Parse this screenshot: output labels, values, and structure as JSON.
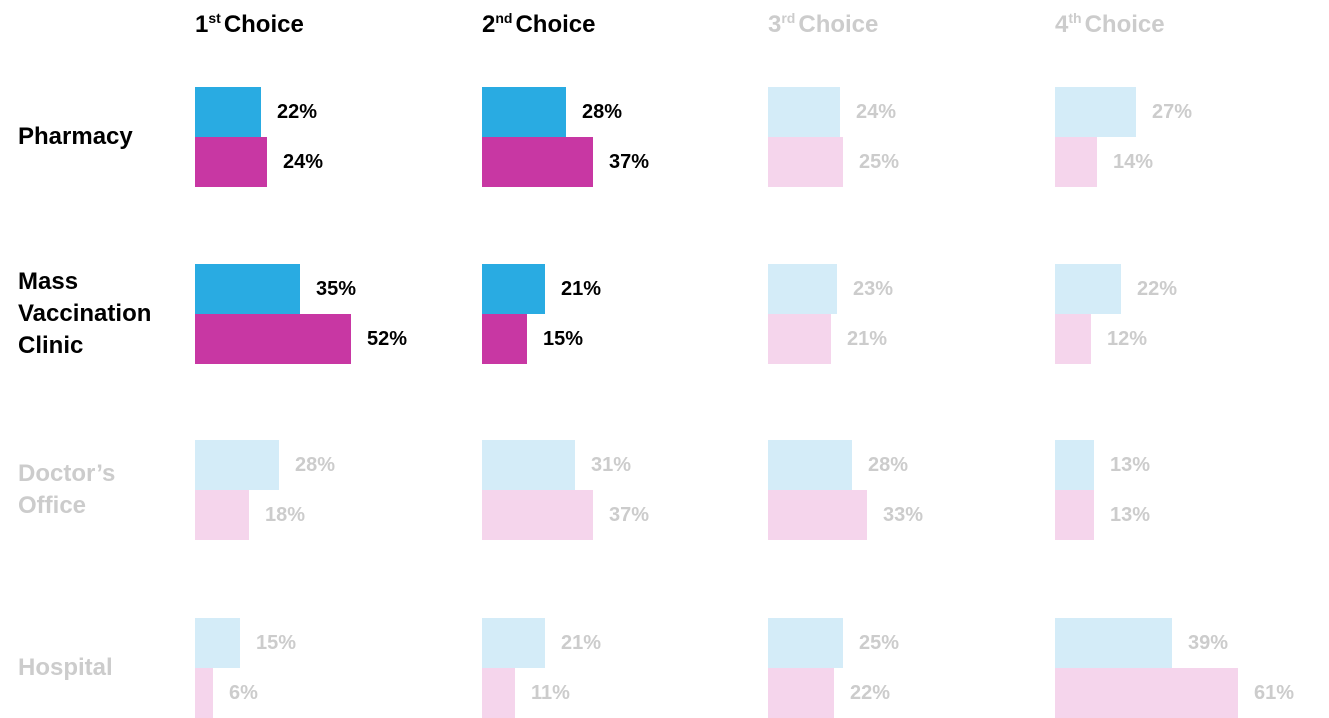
{
  "chart_data": {
    "type": "bar",
    "colors": [
      "#29abe2",
      "#c837a3"
    ],
    "faded_colors": [
      "#d4ecf8",
      "#f5d5ec"
    ],
    "text_color": "#000000",
    "faded_text_color": "#cccccc",
    "columns": [
      {
        "number": "1",
        "suffix": "st",
        "label": "Choice",
        "highlight": true
      },
      {
        "number": "2",
        "suffix": "nd",
        "label": "Choice",
        "highlight": true
      },
      {
        "number": "3",
        "suffix": "rd",
        "label": "Choice",
        "highlight": false
      },
      {
        "number": "4",
        "suffix": "th",
        "label": "Choice",
        "highlight": false
      }
    ],
    "rows": [
      {
        "label": "Pharmacy",
        "highlight": true,
        "cells": [
          {
            "values": [
              22,
              24
            ],
            "value_labels": [
              "22%",
              "24%"
            ]
          },
          {
            "values": [
              28,
              37
            ],
            "value_labels": [
              "28%",
              "37%"
            ]
          },
          {
            "values": [
              24,
              25
            ],
            "value_labels": [
              "24%",
              "25%"
            ]
          },
          {
            "values": [
              27,
              14
            ],
            "value_labels": [
              "27%",
              "14%"
            ]
          }
        ]
      },
      {
        "label": "Mass Vaccination Clinic",
        "highlight": true,
        "cells": [
          {
            "values": [
              35,
              52
            ],
            "value_labels": [
              "35%",
              "52%"
            ]
          },
          {
            "values": [
              21,
              15
            ],
            "value_labels": [
              "21%",
              "15%"
            ]
          },
          {
            "values": [
              23,
              21
            ],
            "value_labels": [
              "23%",
              "21%"
            ]
          },
          {
            "values": [
              22,
              12
            ],
            "value_labels": [
              "22%",
              "12%"
            ]
          }
        ]
      },
      {
        "label": "Doctor’s Office",
        "highlight": false,
        "cells": [
          {
            "values": [
              28,
              18
            ],
            "value_labels": [
              "28%",
              "18%"
            ]
          },
          {
            "values": [
              31,
              37
            ],
            "value_labels": [
              "31%",
              "37%"
            ]
          },
          {
            "values": [
              28,
              33
            ],
            "value_labels": [
              "28%",
              "33%"
            ]
          },
          {
            "values": [
              13,
              13
            ],
            "value_labels": [
              "13%",
              "13%"
            ]
          }
        ]
      },
      {
        "label": "Hospital",
        "highlight": false,
        "cells": [
          {
            "values": [
              15,
              6
            ],
            "value_labels": [
              "15%",
              "6%"
            ]
          },
          {
            "values": [
              21,
              11
            ],
            "value_labels": [
              "21%",
              "11%"
            ]
          },
          {
            "values": [
              25,
              22
            ],
            "value_labels": [
              "25%",
              "22%"
            ]
          },
          {
            "values": [
              39,
              61
            ],
            "value_labels": [
              "39%",
              "61%"
            ]
          }
        ]
      }
    ]
  }
}
